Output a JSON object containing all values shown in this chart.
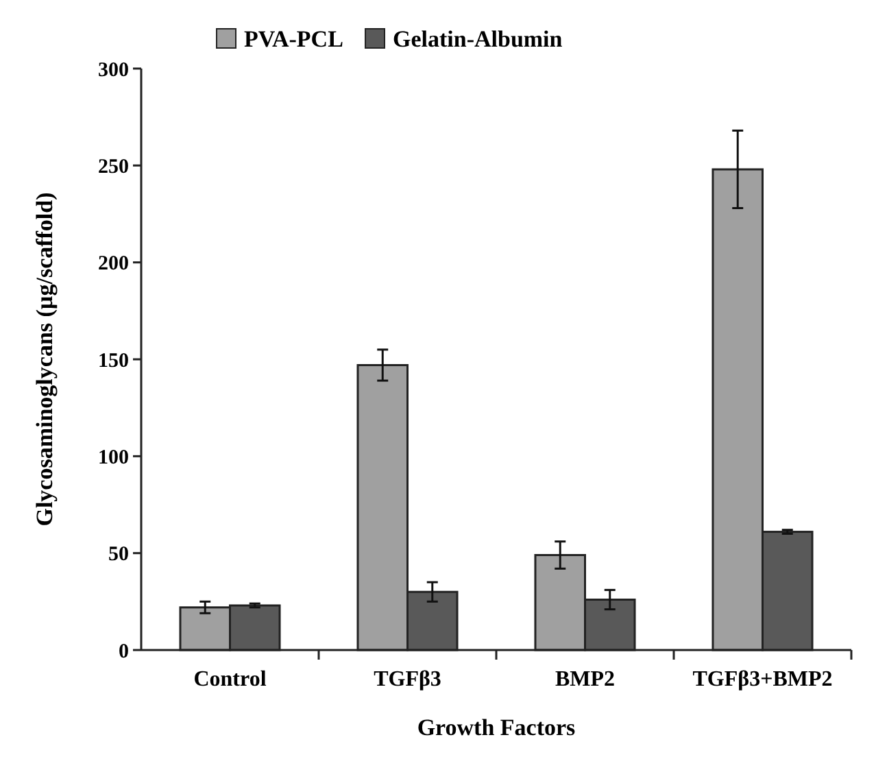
{
  "chart_data": {
    "type": "bar",
    "xlabel": "Growth Factors",
    "ylabel": "Glycosaminoglycans (µg/scaffold)",
    "categories": [
      "Control",
      "TGFβ3",
      "BMP2",
      "TGFβ3+BMP2"
    ],
    "series": [
      {
        "name": "PVA-PCL",
        "color": "#a0a0a0",
        "values": [
          22,
          147,
          49,
          248
        ],
        "errors": [
          3,
          8,
          7,
          20
        ]
      },
      {
        "name": "Gelatin-Albumin",
        "color": "#595959",
        "values": [
          23,
          30,
          26,
          61
        ],
        "errors": [
          1,
          5,
          5,
          1
        ]
      }
    ],
    "ylim": [
      0,
      300
    ],
    "yticks": [
      0,
      50,
      100,
      150,
      200,
      250,
      300
    ],
    "grid": false,
    "legend": "top"
  }
}
